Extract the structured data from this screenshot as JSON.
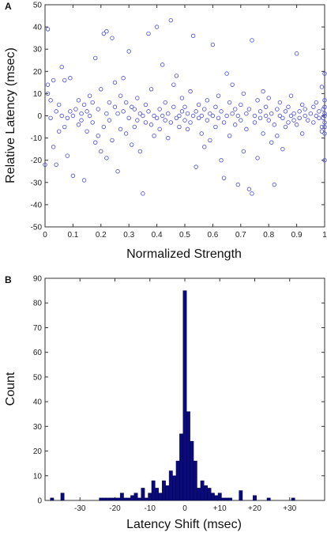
{
  "chart_data": [
    {
      "type": "scatter",
      "panel_label": "A",
      "xlabel": "Normalized Strength",
      "ylabel": "Relative Latency (msec)",
      "xlim": [
        0,
        1
      ],
      "ylim": [
        -50,
        50
      ],
      "xticks": [
        "0",
        "0.1",
        "0.2",
        "0.3",
        "0.4",
        "0.5",
        "0.6",
        "0.7",
        "0.8",
        "0.9",
        "1"
      ],
      "yticks": [
        "50",
        "40",
        "30",
        "20",
        "10",
        "0",
        "-10",
        "-20",
        "-30",
        "-40",
        "-50"
      ],
      "marker_color": "#4a4ad8",
      "points": [
        [
          0.0,
          -22
        ],
        [
          0.01,
          39
        ],
        [
          0.01,
          14
        ],
        [
          0.01,
          10
        ],
        [
          0.02,
          -1
        ],
        [
          0.02,
          7
        ],
        [
          0.03,
          -14
        ],
        [
          0.03,
          16
        ],
        [
          0.04,
          2
        ],
        [
          0.04,
          -22
        ],
        [
          0.05,
          5
        ],
        [
          0.05,
          -7
        ],
        [
          0.06,
          22
        ],
        [
          0.06,
          0
        ],
        [
          0.07,
          -5
        ],
        [
          0.07,
          16
        ],
        [
          0.08,
          -18
        ],
        [
          0.08,
          -1
        ],
        [
          0.09,
          17
        ],
        [
          0.09,
          2
        ],
        [
          0.1,
          -27
        ],
        [
          0.1,
          0
        ],
        [
          0.11,
          3
        ],
        [
          0.12,
          -4
        ],
        [
          0.12,
          7
        ],
        [
          0.13,
          -2
        ],
        [
          0.13,
          1
        ],
        [
          0.14,
          -29
        ],
        [
          0.14,
          5
        ],
        [
          0.15,
          -7
        ],
        [
          0.15,
          2
        ],
        [
          0.16,
          0
        ],
        [
          0.16,
          9
        ],
        [
          0.17,
          -3
        ],
        [
          0.17,
          6
        ],
        [
          0.18,
          26
        ],
        [
          0.18,
          -12
        ],
        [
          0.19,
          3
        ],
        [
          0.19,
          -9
        ],
        [
          0.2,
          -16
        ],
        [
          0.2,
          12
        ],
        [
          0.21,
          37
        ],
        [
          0.21,
          -5
        ],
        [
          0.22,
          38
        ],
        [
          0.22,
          1
        ],
        [
          0.22,
          -19
        ],
        [
          0.23,
          6
        ],
        [
          0.23,
          -2
        ],
        [
          0.24,
          35
        ],
        [
          0.24,
          -11
        ],
        [
          0.25,
          4
        ],
        [
          0.25,
          15
        ],
        [
          0.26,
          -25
        ],
        [
          0.26,
          1
        ],
        [
          0.27,
          9
        ],
        [
          0.27,
          -6
        ],
        [
          0.28,
          17
        ],
        [
          0.28,
          2
        ],
        [
          0.29,
          -8
        ],
        [
          0.29,
          6
        ],
        [
          0.3,
          29
        ],
        [
          0.3,
          -1
        ],
        [
          0.31,
          4
        ],
        [
          0.31,
          -13
        ],
        [
          0.32,
          -5
        ],
        [
          0.32,
          3
        ],
        [
          0.33,
          8
        ],
        [
          0.33,
          -2
        ],
        [
          0.34,
          1
        ],
        [
          0.34,
          -16
        ],
        [
          0.35,
          -35
        ],
        [
          0.35,
          0
        ],
        [
          0.36,
          -3
        ],
        [
          0.36,
          5
        ],
        [
          0.37,
          2
        ],
        [
          0.37,
          37
        ],
        [
          0.38,
          -4
        ],
        [
          0.38,
          12
        ],
        [
          0.39,
          -9
        ],
        [
          0.39,
          0
        ],
        [
          0.4,
          40
        ],
        [
          0.4,
          -1
        ],
        [
          0.41,
          3
        ],
        [
          0.41,
          -6
        ],
        [
          0.42,
          23
        ],
        [
          0.42,
          0
        ],
        [
          0.43,
          -2
        ],
        [
          0.43,
          6
        ],
        [
          0.44,
          -10
        ],
        [
          0.44,
          1
        ],
        [
          0.45,
          43
        ],
        [
          0.45,
          -3
        ],
        [
          0.46,
          4
        ],
        [
          0.46,
          14
        ],
        [
          0.47,
          -1
        ],
        [
          0.47,
          18
        ],
        [
          0.48,
          0
        ],
        [
          0.48,
          -5
        ],
        [
          0.49,
          2
        ],
        [
          0.49,
          8
        ],
        [
          0.5,
          -2
        ],
        [
          0.5,
          4
        ],
        [
          0.51,
          -6
        ],
        [
          0.51,
          1
        ],
        [
          0.52,
          11
        ],
        [
          0.52,
          -3
        ],
        [
          0.53,
          36
        ],
        [
          0.53,
          0
        ],
        [
          0.54,
          -23
        ],
        [
          0.54,
          2
        ],
        [
          0.55,
          -1
        ],
        [
          0.55,
          5
        ],
        [
          0.56,
          -8
        ],
        [
          0.56,
          0
        ],
        [
          0.57,
          3
        ],
        [
          0.57,
          -14
        ],
        [
          0.58,
          7
        ],
        [
          0.58,
          -2
        ],
        [
          0.59,
          1
        ],
        [
          0.59,
          -11
        ],
        [
          0.6,
          32
        ],
        [
          0.6,
          0
        ],
        [
          0.61,
          -5
        ],
        [
          0.61,
          4
        ],
        [
          0.62,
          -1
        ],
        [
          0.62,
          9
        ],
        [
          0.63,
          -20
        ],
        [
          0.63,
          2
        ],
        [
          0.64,
          -28
        ],
        [
          0.64,
          -3
        ],
        [
          0.65,
          19
        ],
        [
          0.65,
          0
        ],
        [
          0.66,
          6
        ],
        [
          0.66,
          -9
        ],
        [
          0.67,
          1
        ],
        [
          0.67,
          14
        ],
        [
          0.68,
          -4
        ],
        [
          0.68,
          3
        ],
        [
          0.69,
          -31
        ],
        [
          0.69,
          0
        ],
        [
          0.7,
          5
        ],
        [
          0.7,
          -2
        ],
        [
          0.71,
          10
        ],
        [
          0.71,
          -16
        ],
        [
          0.72,
          1
        ],
        [
          0.72,
          -6
        ],
        [
          0.73,
          -33
        ],
        [
          0.73,
          3
        ],
        [
          0.74,
          34
        ],
        [
          0.74,
          -35
        ],
        [
          0.75,
          0
        ],
        [
          0.75,
          -3
        ],
        [
          0.76,
          7
        ],
        [
          0.76,
          -19
        ],
        [
          0.77,
          2
        ],
        [
          0.77,
          -1
        ],
        [
          0.78,
          11
        ],
        [
          0.78,
          -8
        ],
        [
          0.79,
          0
        ],
        [
          0.79,
          4
        ],
        [
          0.8,
          -2
        ],
        [
          0.8,
          8
        ],
        [
          0.81,
          -12
        ],
        [
          0.81,
          1
        ],
        [
          0.82,
          -31
        ],
        [
          0.82,
          -4
        ],
        [
          0.83,
          3
        ],
        [
          0.83,
          -9
        ],
        [
          0.84,
          0
        ],
        [
          0.84,
          6
        ],
        [
          0.85,
          -1
        ],
        [
          0.85,
          -15
        ],
        [
          0.86,
          2
        ],
        [
          0.86,
          -5
        ],
        [
          0.87,
          4
        ],
        [
          0.87,
          -3
        ],
        [
          0.88,
          0
        ],
        [
          0.88,
          9
        ],
        [
          0.89,
          -2
        ],
        [
          0.89,
          1
        ],
        [
          0.9,
          28
        ],
        [
          0.9,
          -4
        ],
        [
          0.91,
          2
        ],
        [
          0.91,
          -1
        ],
        [
          0.92,
          5
        ],
        [
          0.92,
          -8
        ],
        [
          0.93,
          0
        ],
        [
          0.93,
          3
        ],
        [
          0.94,
          -2
        ],
        [
          0.95,
          1
        ],
        [
          0.96,
          4
        ],
        [
          0.96,
          -3
        ],
        [
          0.97,
          0
        ],
        [
          0.97,
          6
        ],
        [
          0.98,
          -1
        ],
        [
          0.98,
          2
        ],
        [
          0.99,
          -5
        ],
        [
          0.99,
          13
        ],
        [
          1.0,
          19
        ],
        [
          1.0,
          0
        ],
        [
          1.0,
          -20
        ],
        [
          1.0,
          -3
        ],
        [
          1.0,
          4
        ],
        [
          1.0,
          -8
        ],
        [
          1.0,
          1
        ],
        [
          1.0,
          7
        ],
        [
          1.0,
          -5
        ],
        [
          0.995,
          -1
        ],
        [
          0.99,
          -7
        ],
        [
          0.995,
          3
        ]
      ]
    },
    {
      "type": "bar",
      "panel_label": "B",
      "xlabel": "Latency Shift (msec)",
      "ylabel": "Count",
      "xlim": [
        -40,
        40
      ],
      "ylim": [
        0,
        90
      ],
      "xticks": [
        "-30",
        "-20",
        "-10",
        "0",
        "+10",
        "+20",
        "+30"
      ],
      "yticks": [
        "90",
        "80",
        "70",
        "60",
        "50",
        "40",
        "30",
        "20",
        "10",
        "0"
      ],
      "bar_color": "#0a0a7a",
      "bins": [
        [
          -38,
          1
        ],
        [
          -35,
          3
        ],
        [
          -24,
          1
        ],
        [
          -23,
          1
        ],
        [
          -22,
          1
        ],
        [
          -21,
          1
        ],
        [
          -20,
          1
        ],
        [
          -19,
          1
        ],
        [
          -18,
          3
        ],
        [
          -17,
          1
        ],
        [
          -16,
          1
        ],
        [
          -15,
          2
        ],
        [
          -14,
          3
        ],
        [
          -13,
          1
        ],
        [
          -12,
          5
        ],
        [
          -11,
          1
        ],
        [
          -10,
          3
        ],
        [
          -9,
          8
        ],
        [
          -8,
          5
        ],
        [
          -7,
          3
        ],
        [
          -6,
          8
        ],
        [
          -5,
          6
        ],
        [
          -4,
          12
        ],
        [
          -3,
          10
        ],
        [
          -2,
          16
        ],
        [
          -1,
          27
        ],
        [
          0,
          85
        ],
        [
          1,
          36
        ],
        [
          2,
          24
        ],
        [
          3,
          16
        ],
        [
          4,
          5
        ],
        [
          5,
          8
        ],
        [
          6,
          6
        ],
        [
          7,
          5
        ],
        [
          8,
          3
        ],
        [
          9,
          2
        ],
        [
          10,
          3
        ],
        [
          11,
          1
        ],
        [
          12,
          1
        ],
        [
          13,
          1
        ],
        [
          16,
          4
        ],
        [
          20,
          2
        ],
        [
          24,
          1
        ],
        [
          31,
          1
        ]
      ]
    }
  ]
}
